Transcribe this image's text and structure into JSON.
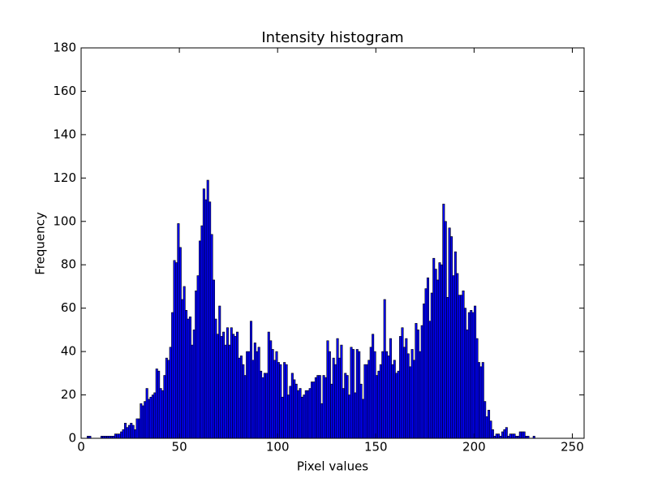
{
  "chart_data": {
    "type": "histogram",
    "title": "Intensity histogram",
    "xlabel": "Pixel values",
    "ylabel": "Frequency",
    "color": "#0000ff",
    "edgecolor": "#000000",
    "xlim": [
      0,
      256
    ],
    "ylim": [
      0,
      180
    ],
    "xticks": [
      0,
      50,
      100,
      150,
      200,
      250
    ],
    "yticks": [
      0,
      20,
      40,
      60,
      80,
      100,
      120,
      140,
      160,
      180
    ],
    "grid": false,
    "bins": [
      0,
      1,
      2,
      3,
      4,
      5,
      6,
      7,
      8,
      9,
      10,
      11,
      12,
      13,
      14,
      15,
      16,
      17,
      18,
      19,
      20,
      21,
      22,
      23,
      24,
      25,
      26,
      27,
      28,
      29,
      30,
      31,
      32,
      33,
      34,
      35,
      36,
      37,
      38,
      39,
      40,
      41,
      42,
      43,
      44,
      45,
      46,
      47,
      48,
      49,
      50,
      51,
      52,
      53,
      54,
      55,
      56,
      57,
      58,
      59,
      60,
      61,
      62,
      63,
      64,
      65,
      66,
      67,
      68,
      69,
      70,
      71,
      72,
      73,
      74,
      75,
      76,
      77,
      78,
      79,
      80,
      81,
      82,
      83,
      84,
      85,
      86,
      87,
      88,
      89,
      90,
      91,
      92,
      93,
      94,
      95,
      96,
      97,
      98,
      99,
      100,
      101,
      102,
      103,
      104,
      105,
      106,
      107,
      108,
      109,
      110,
      111,
      112,
      113,
      114,
      115,
      116,
      117,
      118,
      119,
      120,
      121,
      122,
      123,
      124,
      125,
      126,
      127,
      128,
      129,
      130,
      131,
      132,
      133,
      134,
      135,
      136,
      137,
      138,
      139,
      140,
      141,
      142,
      143,
      144,
      145,
      146,
      147,
      148,
      149,
      150,
      151,
      152,
      153,
      154,
      155,
      156,
      157,
      158,
      159,
      160,
      161,
      162,
      163,
      164,
      165,
      166,
      167,
      168,
      169,
      170,
      171,
      172,
      173,
      174,
      175,
      176,
      177,
      178,
      179,
      180,
      181,
      182,
      183,
      184,
      185,
      186,
      187,
      188,
      189,
      190,
      191,
      192,
      193,
      194,
      195,
      196,
      197,
      198,
      199,
      200,
      201,
      202,
      203,
      204,
      205,
      206,
      207,
      208,
      209,
      210,
      211,
      212,
      213,
      214,
      215,
      216,
      217,
      218,
      219,
      220,
      221,
      222,
      223,
      224,
      225,
      226,
      227,
      228,
      229,
      230,
      231,
      232,
      233,
      234,
      235,
      236,
      237,
      238,
      239,
      240,
      241,
      242,
      243,
      244,
      245,
      246,
      247,
      248,
      249,
      250,
      251,
      252,
      253,
      254,
      255,
      256
    ],
    "values": [
      0,
      0,
      0,
      1,
      1,
      0,
      0,
      0,
      0,
      0,
      1,
      1,
      1,
      1,
      1,
      1,
      1,
      2,
      2,
      2,
      3,
      4,
      7,
      5,
      6,
      7,
      6,
      4,
      9,
      9,
      16,
      15,
      17,
      23,
      18,
      19,
      20,
      21,
      32,
      31,
      23,
      22,
      29,
      37,
      36,
      42,
      58,
      82,
      81,
      99,
      88,
      64,
      70,
      59,
      55,
      56,
      43,
      50,
      68,
      75,
      91,
      98,
      115,
      110,
      119,
      109,
      94,
      73,
      55,
      48,
      61,
      47,
      49,
      43,
      51,
      43,
      51,
      48,
      47,
      49,
      37,
      38,
      34,
      29,
      40,
      40,
      54,
      36,
      44,
      40,
      42,
      31,
      28,
      30,
      30,
      49,
      45,
      41,
      36,
      40,
      35,
      34,
      19,
      35,
      34,
      20,
      24,
      30,
      27,
      25,
      22,
      23,
      19,
      20,
      22,
      22,
      23,
      26,
      26,
      28,
      29,
      29,
      16,
      29,
      28,
      45,
      40,
      25,
      37,
      34,
      46,
      37,
      43,
      23,
      30,
      29,
      20,
      42,
      41,
      21,
      41,
      40,
      25,
      18,
      34,
      34,
      36,
      42,
      48,
      40,
      29,
      31,
      34,
      40,
      64,
      40,
      38,
      46,
      34,
      36,
      30,
      31,
      47,
      51,
      42,
      46,
      39,
      33,
      41,
      36,
      53,
      50,
      40,
      52,
      62,
      69,
      74,
      54,
      67,
      83,
      78,
      73,
      81,
      80,
      108,
      100,
      65,
      97,
      93,
      75,
      86,
      76,
      66,
      66,
      68,
      60,
      50,
      58,
      59,
      58,
      61,
      46,
      35,
      33,
      35,
      17,
      10,
      13,
      8,
      4,
      1,
      2,
      2,
      1,
      3,
      4,
      5,
      1,
      2,
      2,
      2,
      1,
      1,
      3,
      3,
      3,
      1,
      1,
      0,
      0,
      1,
      0,
      0,
      0,
      0,
      0,
      0,
      0,
      0,
      0,
      0,
      0,
      0,
      0,
      0,
      0,
      0,
      0,
      0,
      0,
      0,
      0,
      0,
      0,
      0,
      0
    ]
  }
}
